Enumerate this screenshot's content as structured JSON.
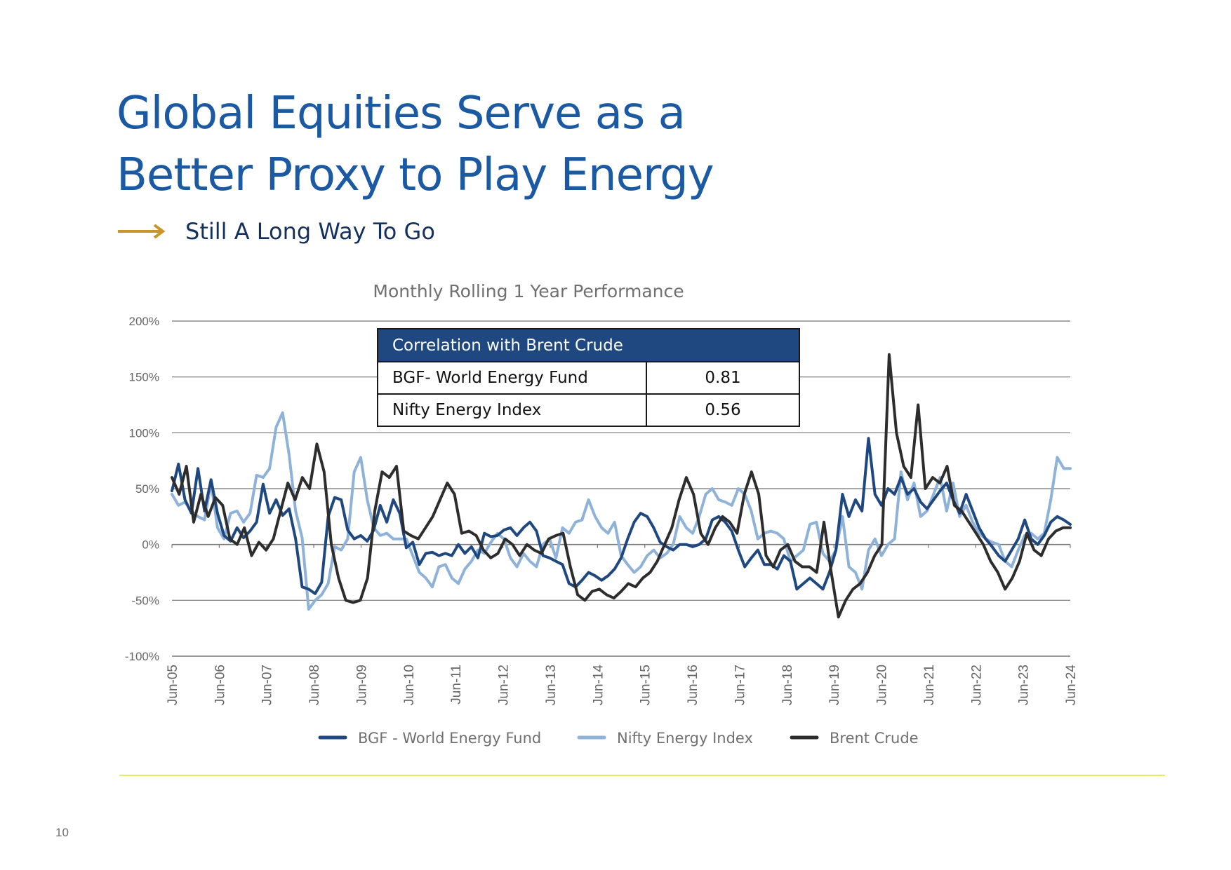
{
  "page": {
    "title_lines": [
      "Global Equities Serve as a",
      "Better Proxy to Play Energy"
    ],
    "subtitle": "Still A Long Way To Go",
    "page_number": "10",
    "colors": {
      "title": "#1b5aa2",
      "arrow": "#c9952b",
      "subtitle": "#14305c",
      "table_header": "#1f4780",
      "footer_line": "#e8ea63"
    }
  },
  "correlation_table": {
    "header": "Correlation with Brent Crude",
    "rows": [
      {
        "name": "BGF- World Energy Fund",
        "value": "0.81"
      },
      {
        "name": "Nifty Energy Index",
        "value": "0.56"
      }
    ]
  },
  "chart_data": {
    "type": "line",
    "title": "Monthly Rolling 1 Year Performance",
    "xlabel": "",
    "ylabel": "",
    "ylim": [
      -100,
      200
    ],
    "y_ticks": [
      "-100%",
      "-50%",
      "0%",
      "50%",
      "100%",
      "150%",
      "200%"
    ],
    "y_tick_values": [
      -100,
      -50,
      0,
      50,
      100,
      150,
      200
    ],
    "x_ticks": [
      "Jun-05",
      "Jun-06",
      "Jun-07",
      "Jun-08",
      "Jun-09",
      "Jun-10",
      "Jun-11",
      "Jun-12",
      "Jun-13",
      "Jun-14",
      "Jun-15",
      "Jun-16",
      "Jun-17",
      "Jun-18",
      "Jun-19",
      "Jun-20",
      "Jun-21",
      "Jun-22",
      "Jun-23",
      "Jun-24"
    ],
    "x_start_year": 2005.5,
    "x_step_years": 0.5,
    "grid": true,
    "legend_position": "bottom",
    "series": [
      {
        "name": "BGF - World Energy Fund",
        "color": "#1f4780",
        "values": [
          48,
          72,
          40,
          28,
          68,
          30,
          58,
          28,
          8,
          3,
          15,
          6,
          12,
          20,
          54,
          28,
          40,
          26,
          32,
          5,
          -38,
          -40,
          -44,
          -34,
          25,
          42,
          40,
          13,
          5,
          8,
          3,
          13,
          35,
          20,
          40,
          28,
          -3,
          2,
          -18,
          -8,
          -7,
          -10,
          -8,
          -10,
          0,
          -8,
          -2,
          -12,
          10,
          7,
          8,
          13,
          15,
          8,
          15,
          20,
          12,
          -10,
          -12,
          -15,
          -18,
          -35,
          -38,
          -32,
          -25,
          -28,
          -32,
          -28,
          -22,
          -12,
          5,
          20,
          28,
          25,
          15,
          2,
          -2,
          -5,
          0,
          0,
          -2,
          0,
          5,
          22,
          25,
          20,
          12,
          -5,
          -20,
          -12,
          -5,
          -18,
          -18,
          -22,
          -10,
          -15,
          -40,
          -35,
          -30,
          -35,
          -40,
          -25,
          -5,
          45,
          25,
          40,
          30,
          95,
          45,
          35,
          50,
          45,
          60,
          45,
          50,
          38,
          32,
          40,
          48,
          55,
          40,
          28,
          45,
          30,
          15,
          5,
          -2,
          -10,
          -15,
          -5,
          5,
          22,
          5,
          0,
          8,
          20,
          25,
          22,
          18
        ]
      },
      {
        "name": "Nifty Energy Index",
        "color": "#8fb2d9",
        "values": [
          45,
          35,
          38,
          30,
          25,
          22,
          55,
          15,
          5,
          28,
          30,
          20,
          28,
          62,
          60,
          68,
          105,
          118,
          80,
          30,
          6,
          -58,
          -50,
          -45,
          -35,
          -2,
          -5,
          5,
          65,
          78,
          40,
          15,
          8,
          10,
          5,
          5,
          5,
          -10,
          -25,
          -30,
          -38,
          -20,
          -18,
          -30,
          -35,
          -22,
          -15,
          -5,
          -8,
          2,
          10,
          5,
          -12,
          -20,
          -8,
          -15,
          -20,
          0,
          5,
          -12,
          15,
          10,
          20,
          22,
          40,
          25,
          15,
          10,
          20,
          -10,
          -18,
          -25,
          -20,
          -10,
          -5,
          -12,
          -8,
          0,
          25,
          15,
          10,
          25,
          45,
          50,
          40,
          38,
          35,
          50,
          45,
          30,
          5,
          10,
          12,
          10,
          5,
          -15,
          -10,
          -5,
          18,
          20,
          -8,
          -15,
          -5,
          25,
          -20,
          -25,
          -40,
          -5,
          5,
          -10,
          0,
          5,
          65,
          40,
          55,
          25,
          30,
          45,
          60,
          30,
          55,
          25,
          35,
          20,
          10,
          5,
          2,
          0,
          -15,
          -20,
          -5,
          8,
          10,
          5,
          10,
          40,
          78,
          68,
          68
        ]
      },
      {
        "name": "Brent Crude",
        "color": "#2d2d2d",
        "values": [
          60,
          45,
          70,
          20,
          45,
          25,
          42,
          35,
          5,
          0,
          15,
          -10,
          2,
          -5,
          5,
          30,
          55,
          40,
          60,
          50,
          90,
          65,
          0,
          -30,
          -50,
          -52,
          -50,
          -30,
          30,
          65,
          60,
          70,
          12,
          8,
          5,
          15,
          25,
          40,
          55,
          45,
          10,
          12,
          8,
          -5,
          -12,
          -8,
          5,
          0,
          -10,
          0,
          -5,
          -8,
          5,
          8,
          10,
          -20,
          -45,
          -50,
          -42,
          -40,
          -45,
          -48,
          -42,
          -35,
          -38,
          -30,
          -25,
          -15,
          0,
          15,
          40,
          60,
          45,
          10,
          0,
          15,
          25,
          20,
          10,
          45,
          65,
          45,
          -10,
          -20,
          -5,
          0,
          -15,
          -20,
          -20,
          -25,
          20,
          -25,
          -65,
          -50,
          -40,
          -35,
          -25,
          -10,
          0,
          170,
          100,
          70,
          60,
          125,
          50,
          60,
          55,
          70,
          35,
          30,
          20,
          10,
          0,
          -15,
          -25,
          -40,
          -30,
          -15,
          10,
          -5,
          -10,
          5,
          12,
          15,
          15
        ]
      }
    ]
  }
}
